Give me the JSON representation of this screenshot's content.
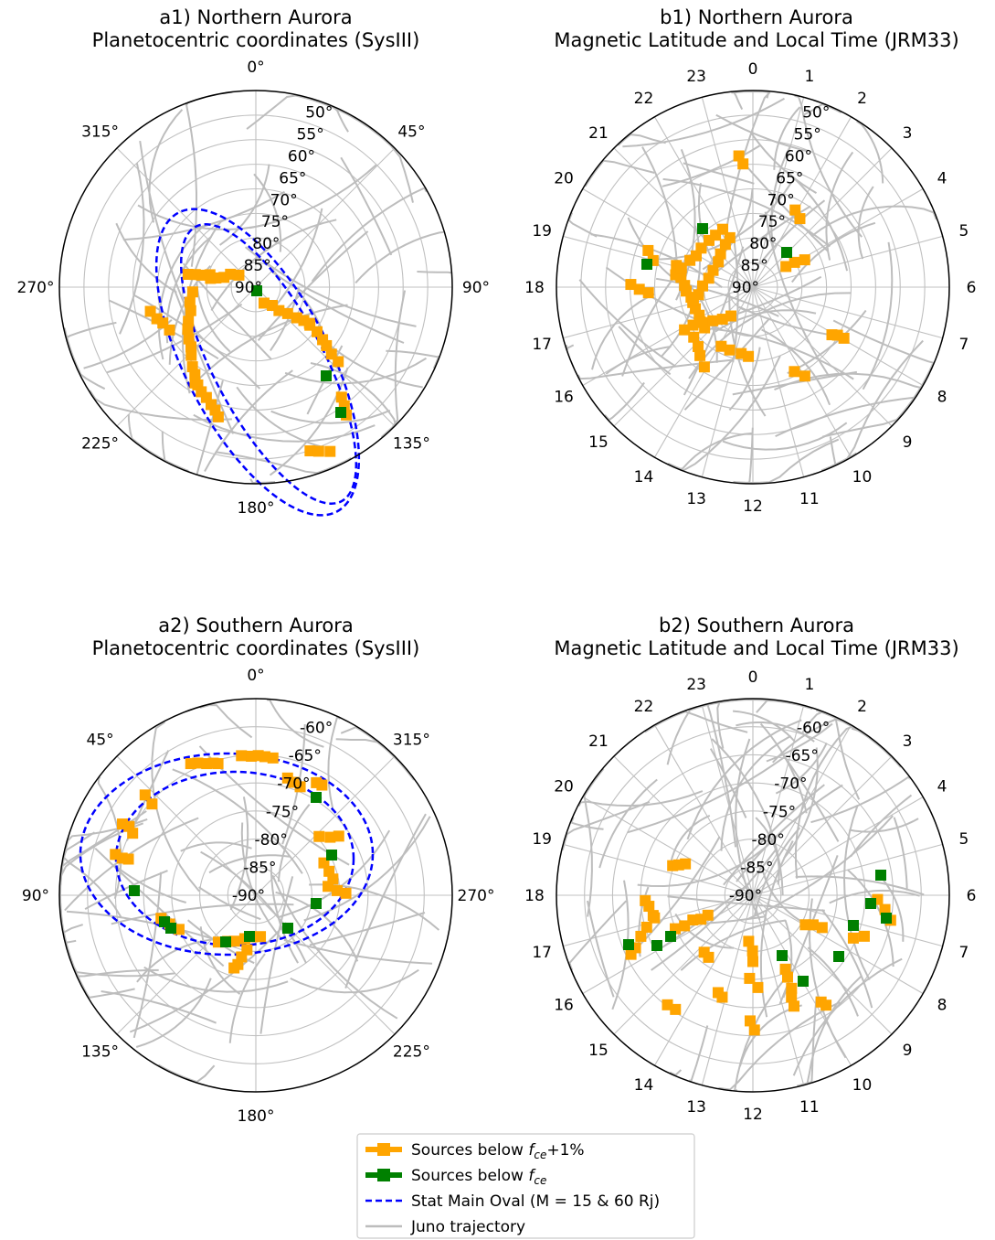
{
  "chart_data": [
    {
      "type": "polar-scatter",
      "title_line1": "a1) Northern Aurora",
      "title_line2": "Planetocentric coordinates (SysIII)",
      "angle_labels": [
        "0°",
        "45°",
        "90°",
        "135°",
        "180°",
        "225°",
        "270°",
        "315°"
      ],
      "radial_labels": [
        "50°",
        "55°",
        "60°",
        "65°",
        "70°",
        "75°",
        "80°",
        "85°",
        "90°"
      ],
      "radial_range": [
        50,
        90
      ],
      "grid": true,
      "oval": true
    },
    {
      "type": "polar-scatter",
      "title_line1": "b1) Northern Aurora",
      "title_line2": "Magnetic Latitude and Local Time (JRM33)",
      "angle_labels": [
        "0",
        "1",
        "2",
        "3",
        "4",
        "5",
        "6",
        "7",
        "8",
        "9",
        "10",
        "11",
        "12",
        "13",
        "14",
        "15",
        "16",
        "17",
        "18",
        "19",
        "20",
        "21",
        "22",
        "23"
      ],
      "radial_labels": [
        "50°",
        "55°",
        "60°",
        "65°",
        "70°",
        "75°",
        "80°",
        "85°",
        "90°"
      ],
      "radial_range": [
        50,
        90
      ],
      "grid": true,
      "oval": false
    },
    {
      "type": "polar-scatter",
      "title_line1": "a2) Southern Aurora",
      "title_line2": "Planetocentric coordinates (SysIII)",
      "angle_labels": [
        "0°",
        "315°",
        "270°",
        "225°",
        "180°",
        "135°",
        "90°",
        "45°"
      ],
      "radial_labels": [
        "-60°",
        "-65°",
        "-70°",
        "-75°",
        "-80°",
        "-85°",
        "-90°"
      ],
      "radial_range": [
        -55,
        -90
      ],
      "grid": true,
      "oval": true
    },
    {
      "type": "polar-scatter",
      "title_line1": "b2) Southern Aurora",
      "title_line2": "Magnetic Latitude and Local Time (JRM33)",
      "angle_labels": [
        "0",
        "1",
        "2",
        "3",
        "4",
        "5",
        "6",
        "7",
        "8",
        "9",
        "10",
        "11",
        "12",
        "13",
        "14",
        "15",
        "16",
        "17",
        "18",
        "19",
        "20",
        "21",
        "22",
        "23"
      ],
      "radial_labels": [
        "-60°",
        "-65°",
        "-70°",
        "-75°",
        "-80°",
        "-85°",
        "-90°"
      ],
      "radial_range": [
        -55,
        -90
      ],
      "grid": true,
      "oval": false
    }
  ],
  "legend": {
    "items": [
      {
        "label": "Sources below ",
        "sym": "f",
        "sub": "ce",
        "suffix": "+1%",
        "color": "#ffa500",
        "kind": "square-line"
      },
      {
        "label": "Sources below ",
        "sym": "f",
        "sub": "ce",
        "suffix": "",
        "color": "#008000",
        "kind": "square-line"
      },
      {
        "label": "Stat Main Oval (M = 15 & 60 Rj)",
        "sym": "",
        "sub": "",
        "suffix": "",
        "color": "#0000ff",
        "kind": "dashed"
      },
      {
        "label": "Juno trajectory",
        "sym": "",
        "sub": "",
        "suffix": "",
        "color": "#bdbdbd",
        "kind": "line"
      }
    ]
  },
  "colors": {
    "orange": "#ffa500",
    "green": "#008000",
    "oval": "#0000ff",
    "trajectory": "#bdbdbd",
    "grid": "#c0c0c0"
  }
}
